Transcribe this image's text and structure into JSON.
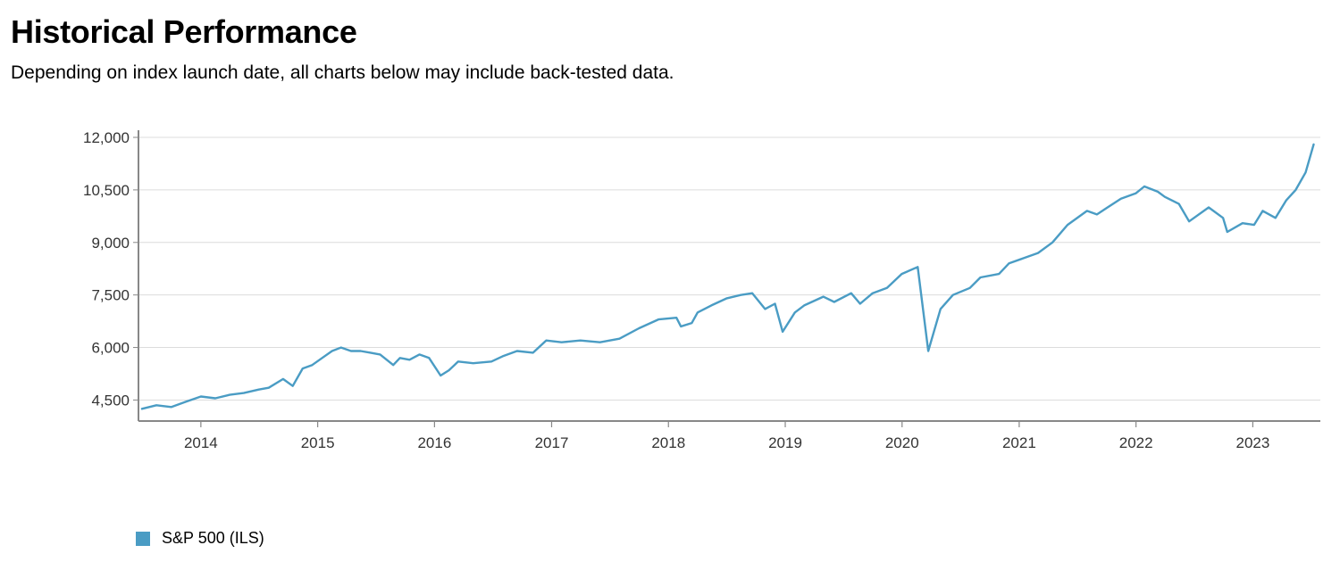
{
  "header": {
    "title": "Historical Performance",
    "subtitle": "Depending on index launch date, all charts below may include back-tested data."
  },
  "colors": {
    "series": "#4a9cc4",
    "grid": "#dcdcdc",
    "axis": "#888888"
  },
  "chart_data": {
    "type": "line",
    "title": "",
    "xlabel": "",
    "ylabel": "",
    "ylim": [
      3900,
      12000
    ],
    "xlim": [
      "2013-06-20",
      "2023-07-31"
    ],
    "yticks": [
      4500,
      6000,
      7500,
      9000,
      10500,
      12000
    ],
    "ytick_labels": [
      "4,500",
      "6,000",
      "7,500",
      "9,000",
      "10,500",
      "12,000"
    ],
    "xticks": [
      "2014-01-01",
      "2015-01-01",
      "2016-01-01",
      "2017-01-01",
      "2018-01-01",
      "2019-01-01",
      "2020-01-01",
      "2021-01-01",
      "2022-01-01",
      "2023-01-01"
    ],
    "xtick_labels": [
      "2014",
      "2015",
      "2016",
      "2017",
      "2018",
      "2019",
      "2020",
      "2021",
      "2022",
      "2023"
    ],
    "grid": true,
    "legend_position": "bottom-left",
    "series": [
      {
        "name": "S&P 500 (ILS)",
        "x": [
          "2013-07-01",
          "2013-08-15",
          "2013-10-01",
          "2013-11-15",
          "2014-01-01",
          "2014-02-15",
          "2014-04-01",
          "2014-05-15",
          "2014-07-01",
          "2014-08-01",
          "2014-09-15",
          "2014-10-15",
          "2014-11-15",
          "2014-12-15",
          "2015-01-15",
          "2015-02-15",
          "2015-03-15",
          "2015-04-15",
          "2015-05-15",
          "2015-06-15",
          "2015-07-15",
          "2015-08-25",
          "2015-09-15",
          "2015-10-15",
          "2015-11-15",
          "2015-12-15",
          "2016-01-20",
          "2016-02-15",
          "2016-03-15",
          "2016-05-01",
          "2016-06-27",
          "2016-08-01",
          "2016-09-15",
          "2016-11-04",
          "2016-12-15",
          "2017-02-01",
          "2017-04-01",
          "2017-06-01",
          "2017-08-01",
          "2017-10-01",
          "2017-12-01",
          "2018-01-26",
          "2018-02-09",
          "2018-03-15",
          "2018-04-02",
          "2018-05-15",
          "2018-07-01",
          "2018-08-15",
          "2018-09-20",
          "2018-10-30",
          "2018-11-30",
          "2018-12-24",
          "2019-01-31",
          "2019-03-01",
          "2019-04-30",
          "2019-06-03",
          "2019-07-26",
          "2019-08-23",
          "2019-10-01",
          "2019-11-15",
          "2019-12-31",
          "2020-02-19",
          "2020-03-23",
          "2020-04-30",
          "2020-06-08",
          "2020-07-31",
          "2020-09-02",
          "2020-10-30",
          "2020-11-30",
          "2021-01-15",
          "2021-03-01",
          "2021-04-15",
          "2021-06-01",
          "2021-08-01",
          "2021-09-01",
          "2021-10-04",
          "2021-11-15",
          "2021-12-31",
          "2022-01-27",
          "2022-03-10",
          "2022-04-01",
          "2022-05-15",
          "2022-06-16",
          "2022-08-16",
          "2022-09-30",
          "2022-10-13",
          "2022-11-30",
          "2023-01-05",
          "2023-02-01",
          "2023-03-13",
          "2023-04-15",
          "2023-05-15",
          "2023-06-15",
          "2023-07-10"
        ],
        "y": [
          4250,
          4350,
          4300,
          4450,
          4600,
          4550,
          4650,
          4700,
          4800,
          4850,
          5100,
          4900,
          5400,
          5500,
          5700,
          5900,
          6000,
          5900,
          5900,
          5850,
          5800,
          5500,
          5700,
          5650,
          5800,
          5700,
          5200,
          5350,
          5600,
          5550,
          5600,
          5750,
          5900,
          5850,
          6200,
          6150,
          6200,
          6150,
          6250,
          6550,
          6800,
          6850,
          6600,
          6700,
          7000,
          7200,
          7400,
          7500,
          7550,
          7100,
          7250,
          6450,
          7000,
          7200,
          7450,
          7300,
          7550,
          7250,
          7550,
          7700,
          8100,
          8300,
          5900,
          7100,
          7500,
          7700,
          8000,
          8100,
          8400,
          8550,
          8700,
          9000,
          9500,
          9900,
          9800,
          10000,
          10250,
          10400,
          10600,
          10450,
          10300,
          10100,
          9600,
          10000,
          9700,
          9300,
          9550,
          9500,
          9900,
          9700,
          10200,
          10500,
          11000,
          11800
        ]
      }
    ]
  }
}
